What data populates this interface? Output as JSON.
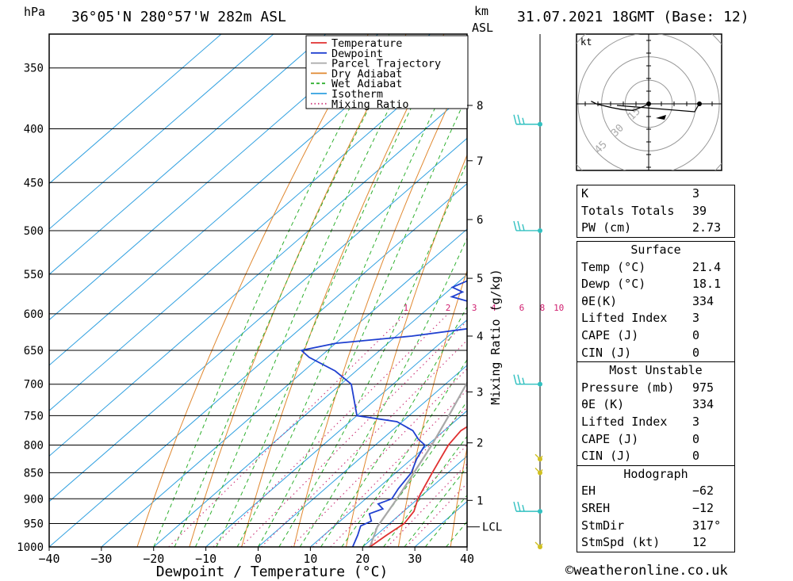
{
  "header": {
    "pressure_unit": "hPa",
    "location": "36°05'N  280°57'W  282m  ASL",
    "height_unit_line1": "km",
    "height_unit_line2": "ASL",
    "datetime": "31.07.2021  18GMT  (Base: 12)"
  },
  "chart_data": {
    "type": "line",
    "xlabel": "Dewpoint / Temperature (°C)",
    "mixing_ratio_label": "Mixing Ratio (g/kg)",
    "xlim": [
      -40,
      40
    ],
    "x_ticks": [
      "−40",
      "−30",
      "−20",
      "−10",
      "0",
      "10",
      "20",
      "30",
      "40"
    ],
    "pressure_levels": [
      "350",
      "400",
      "450",
      "500",
      "550",
      "600",
      "650",
      "700",
      "750",
      "800",
      "850",
      "900",
      "950",
      "1000"
    ],
    "pressure_range": [
      1000,
      325
    ],
    "km_ticks": [
      {
        "label": "8",
        "p": 380
      },
      {
        "label": "7",
        "p": 429
      },
      {
        "label": "6",
        "p": 488
      },
      {
        "label": "5",
        "p": 555
      },
      {
        "label": "4",
        "p": 630
      },
      {
        "label": "3",
        "p": 712
      },
      {
        "label": "2",
        "p": 796
      },
      {
        "label": "1",
        "p": 903
      }
    ],
    "lcl": {
      "label": "LCL",
      "p": 957
    },
    "mixing_ratio_lines": [
      "1",
      "2",
      "3",
      "4",
      "6",
      "8",
      "10",
      "16",
      "20",
      "25"
    ],
    "legend": [
      {
        "name": "Temperature",
        "color": "#e03030",
        "style": "solid"
      },
      {
        "name": "Dewpoint",
        "color": "#2040d0",
        "style": "solid"
      },
      {
        "name": "Parcel Trajectory",
        "color": "#a8a8a8",
        "style": "solid"
      },
      {
        "name": "Dry Adiabat",
        "color": "#e08830",
        "style": "solid"
      },
      {
        "name": "Wet Adiabat",
        "color": "#30b030",
        "style": "dashed"
      },
      {
        "name": "Isotherm",
        "color": "#30a0e0",
        "style": "solid"
      },
      {
        "name": "Mixing Ratio",
        "color": "#d04080",
        "style": "dotted"
      }
    ],
    "series": [
      {
        "name": "Temperature",
        "points": [
          [
            1000,
            21.4
          ],
          [
            975,
            22
          ],
          [
            950,
            22.8
          ],
          [
            925,
            22
          ],
          [
            900,
            20
          ],
          [
            875,
            18.5
          ],
          [
            850,
            17
          ],
          [
            825,
            15.5
          ],
          [
            800,
            14
          ],
          [
            775,
            13.2
          ],
          [
            750,
            14.5
          ],
          [
            725,
            13
          ],
          [
            700,
            10.5
          ],
          [
            650,
            7
          ],
          [
            600,
            4
          ],
          [
            575,
            1
          ],
          [
            550,
            -1
          ],
          [
            500,
            -5
          ],
          [
            450,
            -10.5
          ],
          [
            425,
            -14
          ],
          [
            400,
            -18
          ],
          [
            375,
            -21.5
          ],
          [
            350,
            -27
          ],
          [
            330,
            -32
          ]
        ]
      },
      {
        "name": "Dewpoint",
        "points": [
          [
            1000,
            18.1
          ],
          [
            975,
            16.5
          ],
          [
            955,
            15
          ],
          [
            945,
            16
          ],
          [
            930,
            14
          ],
          [
            920,
            15.5
          ],
          [
            910,
            13.5
          ],
          [
            900,
            15
          ],
          [
            880,
            14
          ],
          [
            850,
            13
          ],
          [
            825,
            11
          ],
          [
            800,
            9.5
          ],
          [
            790,
            7
          ],
          [
            775,
            4
          ],
          [
            760,
            -1
          ],
          [
            750,
            -10
          ],
          [
            700,
            -18
          ],
          [
            680,
            -24
          ],
          [
            660,
            -32
          ],
          [
            650,
            -35
          ],
          [
            640,
            -30
          ],
          [
            630,
            -17
          ],
          [
            620,
            -8
          ],
          [
            610,
            -2
          ],
          [
            600,
            -3
          ],
          [
            590,
            -8
          ],
          [
            585,
            -13
          ],
          [
            578,
            -18
          ],
          [
            572,
            -17
          ],
          [
            566,
            -20
          ],
          [
            555,
            -18
          ],
          [
            548,
            -16.5
          ],
          [
            540,
            -16
          ],
          [
            530,
            -17
          ],
          [
            520,
            -17
          ],
          [
            510,
            -16.5
          ],
          [
            500,
            -18
          ],
          [
            490,
            -20
          ],
          [
            460,
            -23
          ],
          [
            445,
            -26
          ],
          [
            430,
            -26
          ],
          [
            415,
            -29
          ],
          [
            400,
            -33.5
          ],
          [
            390,
            -37
          ],
          [
            375,
            -41
          ],
          [
            360,
            -41
          ],
          [
            355,
            -39
          ],
          [
            340,
            -42
          ],
          [
            330,
            -44
          ],
          [
            320,
            -45
          ]
        ]
      },
      {
        "name": "Parcel Trajectory",
        "points": [
          [
            1000,
            21.4
          ],
          [
            957,
            18.4
          ],
          [
            900,
            16
          ],
          [
            850,
            13.5
          ],
          [
            800,
            10.8
          ],
          [
            750,
            7.6
          ],
          [
            700,
            4
          ],
          [
            650,
            0
          ],
          [
            600,
            -4.5
          ],
          [
            550,
            -9.5
          ],
          [
            500,
            -15.5
          ],
          [
            450,
            -22.5
          ],
          [
            400,
            -31
          ],
          [
            350,
            -41
          ],
          [
            330,
            -46
          ]
        ]
      }
    ],
    "wind_barbs": [
      {
        "p": 396,
        "color": "#30c0c0"
      },
      {
        "p": 500,
        "color": "#30c0c0"
      },
      {
        "p": 700,
        "color": "#30c0c0"
      },
      {
        "p": 825,
        "color": "#d0c020"
      },
      {
        "p": 850,
        "color": "#d0c020"
      },
      {
        "p": 925,
        "color": "#30c0c0"
      },
      {
        "p": 1000,
        "color": "#d0c020"
      }
    ]
  },
  "hodograph": {
    "unit": "kt",
    "ring_labels": [
      "15",
      "30",
      "45"
    ],
    "trace": [
      [
        0,
        0
      ],
      [
        -2,
        1
      ],
      [
        -6,
        2.5
      ],
      [
        -10,
        2.2
      ],
      [
        -14,
        1.5
      ],
      [
        -18,
        0.5
      ],
      [
        -20,
        0
      ],
      [
        -22,
        -1
      ]
    ]
  },
  "indices": {
    "rows": [
      {
        "label": "K",
        "value": "3"
      },
      {
        "label": "Totals Totals",
        "value": "39"
      },
      {
        "label": "PW (cm)",
        "value": "2.73"
      }
    ]
  },
  "surface": {
    "title": "Surface",
    "rows": [
      {
        "label": "Temp (°C)",
        "value": "21.4"
      },
      {
        "label": "Dewp (°C)",
        "value": "18.1"
      },
      {
        "label": "θE(K)",
        "value": "334"
      },
      {
        "label": "Lifted Index",
        "value": "3"
      },
      {
        "label": "CAPE (J)",
        "value": "0"
      },
      {
        "label": "CIN (J)",
        "value": "0"
      }
    ]
  },
  "most_unstable": {
    "title": "Most Unstable",
    "rows": [
      {
        "label": "Pressure (mb)",
        "value": "975"
      },
      {
        "label": "θE (K)",
        "value": "334"
      },
      {
        "label": "Lifted Index",
        "value": "3"
      },
      {
        "label": "CAPE (J)",
        "value": "0"
      },
      {
        "label": "CIN (J)",
        "value": "0"
      }
    ]
  },
  "hodograph_stats": {
    "title": "Hodograph",
    "rows": [
      {
        "label": "EH",
        "value": "−62"
      },
      {
        "label": "SREH",
        "value": "−12"
      },
      {
        "label": "StmDir",
        "value": "317°"
      },
      {
        "label": "StmSpd (kt)",
        "value": "12"
      }
    ]
  },
  "footer": {
    "credit": "©weatheronline.co.uk"
  }
}
